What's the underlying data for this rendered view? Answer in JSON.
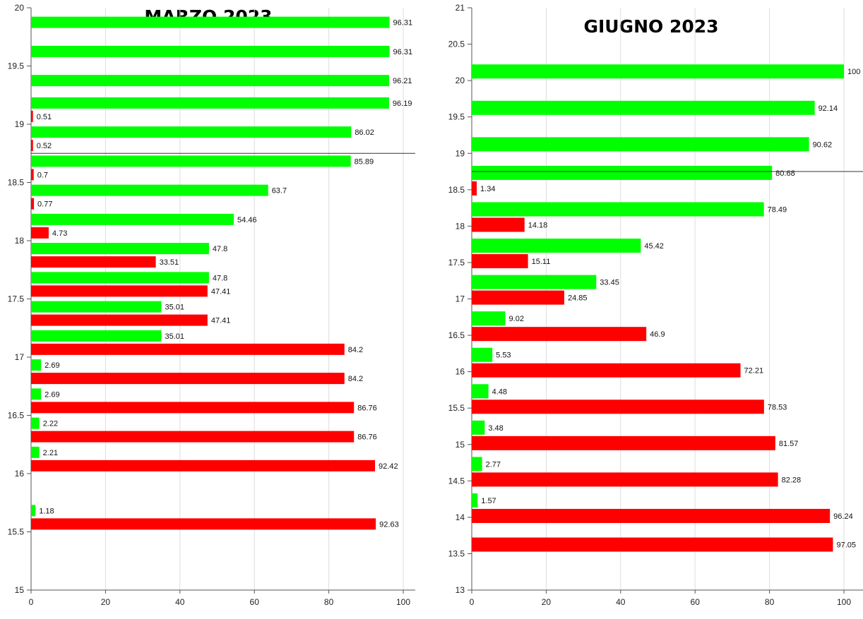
{
  "colors": {
    "green": "#00ff00",
    "red": "#ff0000",
    "grid": "#dddddd",
    "axis": "#555555",
    "divider": "#333333"
  },
  "chart_data": [
    {
      "type": "bar",
      "orientation": "horizontal",
      "title": "MARZO 2023",
      "xlim": [
        0,
        100
      ],
      "ylim": [
        15,
        20
      ],
      "x_ticks": [
        "0",
        "20",
        "40",
        "60",
        "80",
        "100"
      ],
      "y_ticks": [
        "15",
        "15.5",
        "16",
        "16.5",
        "17",
        "17.5",
        "18",
        "18.5",
        "19",
        "19.5",
        "20"
      ],
      "grid": "vertical",
      "divider_y": 18.75,
      "groups": [
        {
          "y": 19.875,
          "green": "96.31",
          "red": null
        },
        {
          "y": 19.625,
          "green": "96.31",
          "red": null
        },
        {
          "y": 19.375,
          "green": "96.21",
          "red": null
        },
        {
          "y": 19.125,
          "green": "96.19",
          "red": "0.51"
        },
        {
          "y": 18.875,
          "green": "86.02",
          "red": "0.52"
        },
        {
          "y": 18.625,
          "green": "85.89",
          "red": "0.7"
        },
        {
          "y": 18.375,
          "green": "63.7",
          "red": "0.77"
        },
        {
          "y": 18.125,
          "green": "54.46",
          "red": "4.73"
        },
        {
          "y": 17.875,
          "green": "47.8",
          "red": "33.51"
        },
        {
          "y": 17.625,
          "green": "47.8",
          "red": "47.41"
        },
        {
          "y": 17.375,
          "green": "35.01",
          "red": "47.41"
        },
        {
          "y": 17.125,
          "green": "35.01",
          "red": "84.2"
        },
        {
          "y": 16.875,
          "green": "2.69",
          "red": "84.2"
        },
        {
          "y": 16.625,
          "green": "2.69",
          "red": "86.76"
        },
        {
          "y": 16.375,
          "green": "2.22",
          "red": "86.76"
        },
        {
          "y": 16.125,
          "green": "2.21",
          "red": "92.42"
        },
        {
          "y": 15.625,
          "green": "1.18",
          "red": "92.63"
        }
      ]
    },
    {
      "type": "bar",
      "orientation": "horizontal",
      "title": "GIUGNO 2023",
      "xlim": [
        0,
        100
      ],
      "ylim": [
        13,
        21
      ],
      "x_ticks": [
        "0",
        "20",
        "40",
        "60",
        "80",
        "100"
      ],
      "y_ticks": [
        "13",
        "13.5",
        "14",
        "14.5",
        "15",
        "15.5",
        "16",
        "16.5",
        "17",
        "17.5",
        "18",
        "18.5",
        "19",
        "19.5",
        "20",
        "20.5",
        "21"
      ],
      "grid": "vertical",
      "divider_y": 18.75,
      "groups": [
        {
          "y": 20.125,
          "green": "100",
          "red": null
        },
        {
          "y": 19.625,
          "green": "92.14",
          "red": null
        },
        {
          "y": 19.125,
          "green": "90.62",
          "red": null
        },
        {
          "y": 18.625,
          "green": "80.68",
          "red": "1.34"
        },
        {
          "y": 18.125,
          "green": "78.49",
          "red": "14.18"
        },
        {
          "y": 17.625,
          "green": "45.42",
          "red": "15.11"
        },
        {
          "y": 17.125,
          "green": "33.45",
          "red": "24.85"
        },
        {
          "y": 16.625,
          "green": "9.02",
          "red": "46.9"
        },
        {
          "y": 16.125,
          "green": "5.53",
          "red": "72.21"
        },
        {
          "y": 15.625,
          "green": "4.48",
          "red": "78.53"
        },
        {
          "y": 15.125,
          "green": "3.48",
          "red": "81.57"
        },
        {
          "y": 14.625,
          "green": "2.77",
          "red": "82.28"
        },
        {
          "y": 14.125,
          "green": "1.57",
          "red": "96.24"
        },
        {
          "y": 13.625,
          "green": null,
          "red": "97.05"
        }
      ]
    }
  ]
}
